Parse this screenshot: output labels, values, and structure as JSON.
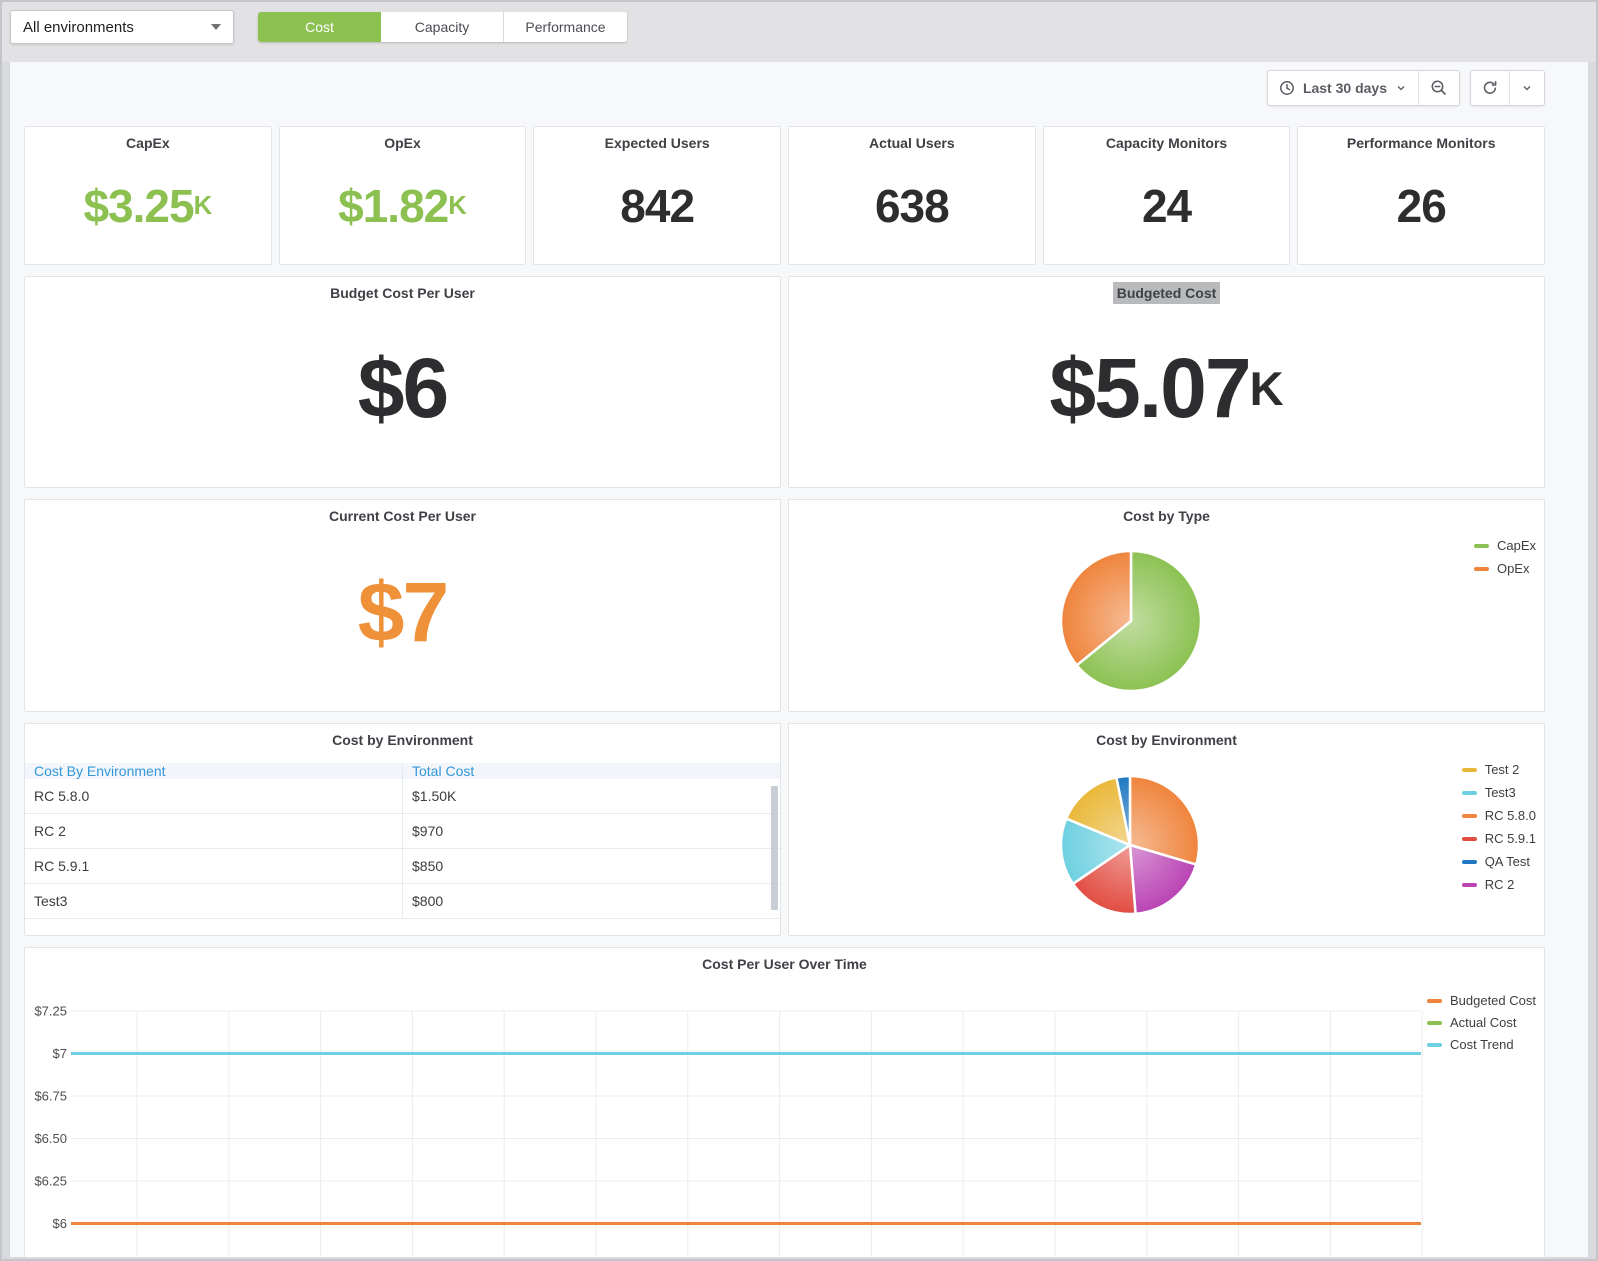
{
  "toolbar": {
    "environment": "All environments",
    "tabs": [
      {
        "label": "Cost",
        "active": true
      },
      {
        "label": "Capacity",
        "active": false
      },
      {
        "label": "Performance",
        "active": false
      }
    ],
    "active_tab_color": "#8CC152"
  },
  "timebar": {
    "range": "Last 30 days",
    "icons": [
      "clock-icon",
      "chevron-down-icon",
      "zoom-out-icon",
      "refresh-icon",
      "chevron-down-icon"
    ]
  },
  "stat_panels": [
    {
      "title": "CapEx",
      "value": "$3.25",
      "suffix": "K",
      "color": "#8CC152"
    },
    {
      "title": "OpEx",
      "value": "$1.82",
      "suffix": "K",
      "color": "#8CC152"
    },
    {
      "title": "Expected Users",
      "value": "842",
      "suffix": "",
      "color": "#2D2D30"
    },
    {
      "title": "Actual Users",
      "value": "638",
      "suffix": "",
      "color": "#2D2D30"
    },
    {
      "title": "Capacity Monitors",
      "value": "24",
      "suffix": "",
      "color": "#2D2D30"
    },
    {
      "title": "Performance Monitors",
      "value": "26",
      "suffix": "",
      "color": "#2D2D30"
    }
  ],
  "big_stat_panels": [
    {
      "title": "Budget Cost Per User",
      "value": "$6",
      "suffix": "",
      "color": "#2D2D30",
      "highlight": false
    },
    {
      "title": "Budgeted Cost",
      "value": "$5.07",
      "suffix": "K",
      "color": "#2D2D30",
      "highlight": true
    },
    {
      "title": "Current Cost Per User",
      "value": "$7",
      "suffix": "",
      "color": "#EE9138",
      "highlight": false
    }
  ],
  "chart_data": [
    {
      "type": "pie",
      "title": "Cost by Type",
      "legend_position": "right",
      "slices": [
        {
          "label": "CapEx",
          "value": 3250,
          "color": "#8CC152"
        },
        {
          "label": "OpEx",
          "value": 1820,
          "color": "#EF843C"
        }
      ]
    },
    {
      "type": "table",
      "title": "Cost by Environment",
      "columns": [
        "Cost By Environment",
        "Total Cost"
      ],
      "rows": [
        [
          "RC 5.8.0",
          "$1.50K"
        ],
        [
          "RC 2",
          "$970"
        ],
        [
          "RC 5.9.1",
          "$850"
        ],
        [
          "Test3",
          "$800"
        ]
      ]
    },
    {
      "type": "pie",
      "title": "Cost by Environment",
      "legend_position": "right",
      "slices": [
        {
          "label": "RC 5.8.0",
          "value": 1500,
          "color": "#EF843C"
        },
        {
          "label": "RC 2",
          "value": 970,
          "color": "#BA43B4"
        },
        {
          "label": "RC 5.9.1",
          "value": 850,
          "color": "#E24D42"
        },
        {
          "label": "Test3",
          "value": 800,
          "color": "#6ED0E0"
        },
        {
          "label": "Test 2",
          "value": 790,
          "color": "#EAB839"
        },
        {
          "label": "QA Test",
          "value": 160,
          "color": "#1F78C1"
        }
      ],
      "legend_order": [
        "Test 2",
        "Test3",
        "RC 5.8.0",
        "RC 5.9.1",
        "QA Test",
        "RC 2"
      ]
    },
    {
      "type": "line",
      "title": "Cost Per User Over Time",
      "x_range_label": "Last 30 days",
      "grid": true,
      "ylim": [
        5.8,
        7.45
      ],
      "y_ticks": [
        {
          "label": "$7.25",
          "value": 7.25
        },
        {
          "label": "$7",
          "value": 7.0
        },
        {
          "label": "$6.75",
          "value": 6.75
        },
        {
          "label": "$6.50",
          "value": 6.5
        },
        {
          "label": "$6.25",
          "value": 6.25
        },
        {
          "label": "$6",
          "value": 6.0
        }
      ],
      "legend_position": "right",
      "series": [
        {
          "name": "Budgeted Cost",
          "color": "#EF843C",
          "constant_value": 6.0,
          "z": 1
        },
        {
          "name": "Actual Cost",
          "color": "#8CC152",
          "constant_value": 7.0,
          "z": 0
        },
        {
          "name": "Cost Trend",
          "color": "#6ED0E0",
          "constant_value": 7.0,
          "z": 2
        }
      ]
    }
  ]
}
